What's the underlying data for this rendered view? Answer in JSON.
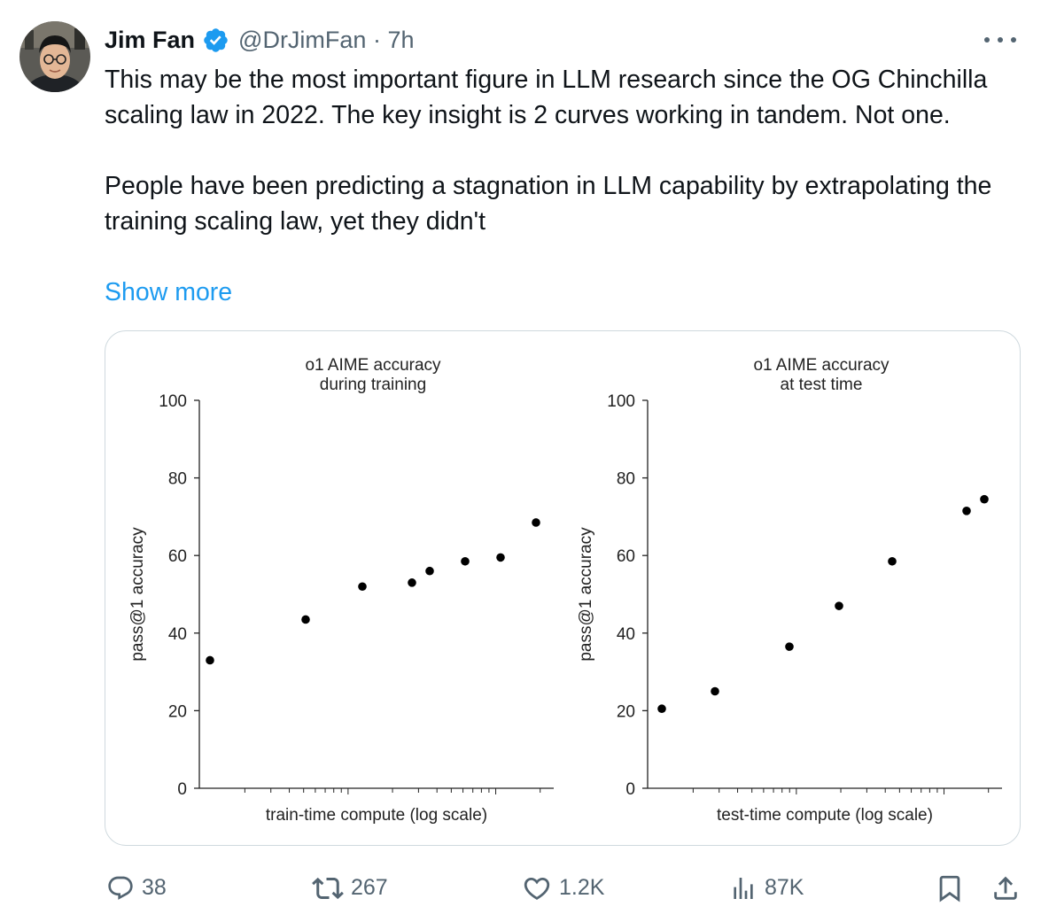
{
  "tweet": {
    "author_name": "Jim Fan",
    "handle_time": "@DrJimFan · 7h",
    "paragraph1": "This may be the most important figure in LLM research since the OG Chinchilla scaling law in 2022. The key insight is 2 curves working in tandem. Not one.",
    "paragraph2": "People have been predicting a stagnation in LLM capability by extrapolating the training scaling law, yet they didn't",
    "show_more": "Show more"
  },
  "actions": {
    "replies": "38",
    "retweets": "267",
    "likes": "1.2K",
    "views": "87K"
  },
  "colors": {
    "text": "#0f1419",
    "secondary": "#536471",
    "link": "#1d9bf0",
    "verified": "#1d9bf0",
    "border": "#cfd9de"
  },
  "chart_data": [
    {
      "type": "scatter",
      "title": "o1 AIME accuracy\nduring training",
      "xlabel": "train-time compute (log scale)",
      "ylabel": "pass@1 accuracy",
      "ylim": [
        0,
        100
      ],
      "yticks": [
        0,
        20,
        40,
        60,
        80,
        100
      ],
      "xscale": "log",
      "x": [
        0.03,
        0.3,
        0.46,
        0.6,
        0.65,
        0.75,
        0.85,
        0.95
      ],
      "y": [
        33,
        43.5,
        52,
        53,
        56,
        58.5,
        59.5,
        68.5
      ]
    },
    {
      "type": "scatter",
      "title": "o1 AIME accuracy\nat test time",
      "xlabel": "test-time compute (log scale)",
      "ylabel": "pass@1 accuracy",
      "ylim": [
        0,
        100
      ],
      "yticks": [
        0,
        20,
        40,
        60,
        80,
        100
      ],
      "xscale": "log",
      "x": [
        0.04,
        0.19,
        0.4,
        0.54,
        0.69,
        0.9,
        0.95
      ],
      "y": [
        20.5,
        25,
        36.5,
        47,
        58.5,
        71.5,
        74.5
      ]
    }
  ]
}
